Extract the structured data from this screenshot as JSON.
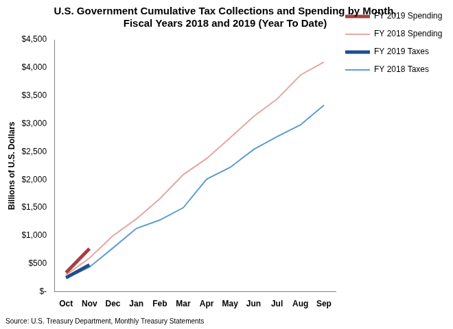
{
  "chart_data": {
    "type": "line",
    "title": [
      "U.S. Government Cumulative Tax Collections and Spending by Month,",
      "Fiscal Years 2018 and 2019 (Year To Date)"
    ],
    "y_label": "Billions of U.S. Dollars",
    "annotations": [
      "Source: U.S. Treasury Department, Monthly Treasury Statements"
    ],
    "categories": [
      "Oct",
      "Nov",
      "Dec",
      "Jan",
      "Feb",
      "Mar",
      "Apr",
      "May",
      "Jun",
      "Jul",
      "Aug",
      "Sep"
    ],
    "series": [
      {
        "name": "FY 2019 Spending",
        "color": "#a5403f",
        "line_style": "bold",
        "marker": "none",
        "values": [
          340,
          770,
          null,
          null,
          null,
          null,
          null,
          null,
          null,
          null,
          null,
          null
        ]
      },
      {
        "name": "FY 2018 Spending",
        "color": "#e6a5a3",
        "line_style": "solid",
        "marker": "none",
        "values": [
          300,
          600,
          1000,
          1300,
          1660,
          2090,
          2380,
          2750,
          3130,
          3440,
          3870,
          4100
        ]
      },
      {
        "name": "FY 2019 Taxes",
        "color": "#1f4e8c",
        "line_style": "bold",
        "marker": "none",
        "values": [
          250,
          480,
          null,
          null,
          null,
          null,
          null,
          null,
          null,
          null,
          null,
          null
        ]
      },
      {
        "name": "FY 2018 Taxes",
        "color": "#5b9bd5",
        "line_style": "solid",
        "marker": "none",
        "values": [
          235,
          440,
          780,
          1130,
          1280,
          1500,
          2010,
          2220,
          2540,
          2770,
          2980,
          3330
        ]
      }
    ],
    "ylim": [
      0,
      4500
    ],
    "yticks": [
      {
        "value": 0,
        "label": "$-"
      },
      {
        "value": 500,
        "label": "$500"
      },
      {
        "value": 1000,
        "label": "$1,000"
      },
      {
        "value": 1500,
        "label": "$1,500"
      },
      {
        "value": 2000,
        "label": "$2,000"
      },
      {
        "value": 2500,
        "label": "$2,500"
      },
      {
        "value": 3000,
        "label": "$3,000"
      },
      {
        "value": 3500,
        "label": "$3,500"
      },
      {
        "value": 4000,
        "label": "$4,000"
      },
      {
        "value": 4500,
        "label": "$4,500"
      }
    ],
    "grid": false,
    "legend": "right"
  }
}
